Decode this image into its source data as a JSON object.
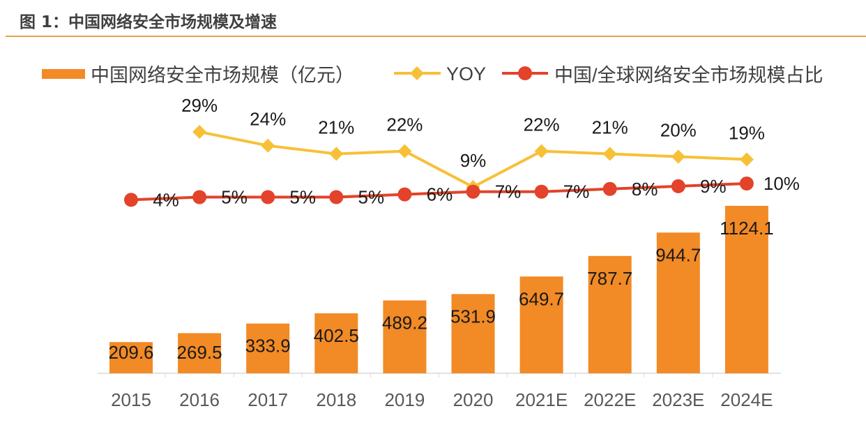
{
  "figure_title": "图 1：中国网络安全市场规模及增速",
  "chart_data": {
    "type": "bar",
    "title": "",
    "categories": [
      "2015",
      "2016",
      "2017",
      "2018",
      "2019",
      "2020",
      "2021E",
      "2022E",
      "2023E",
      "2024E"
    ],
    "legend_position": "top",
    "grid": false,
    "series": [
      {
        "name": "中国网络安全市场规模（亿元）",
        "type": "bar",
        "color": "#F28A26",
        "values": [
          209.6,
          269.5,
          333.9,
          402.5,
          489.2,
          531.9,
          649.7,
          787.7,
          944.7,
          1124.1
        ],
        "labels": [
          "209.6",
          "269.5",
          "333.9",
          "402.5",
          "489.2",
          "531.9",
          "649.7",
          "787.7",
          "944.7",
          "1124.1"
        ]
      },
      {
        "name": "YOY",
        "type": "line",
        "marker": "diamond",
        "color": "#F7C036",
        "values": [
          null,
          29,
          24,
          21,
          22,
          9,
          22,
          21,
          20,
          19
        ],
        "labels": [
          "",
          "29%",
          "24%",
          "21%",
          "22%",
          "9%",
          "22%",
          "21%",
          "20%",
          "19%"
        ]
      },
      {
        "name": "中国/全球网络安全市场规模占比",
        "type": "line",
        "marker": "circle",
        "color": "#E2432A",
        "values": [
          4,
          5,
          5,
          5,
          6,
          7,
          7,
          8,
          9,
          10
        ],
        "labels": [
          "4%",
          "5%",
          "5%",
          "5%",
          "6%",
          "7%",
          "7%",
          "8%",
          "9%",
          "10%"
        ]
      }
    ]
  }
}
